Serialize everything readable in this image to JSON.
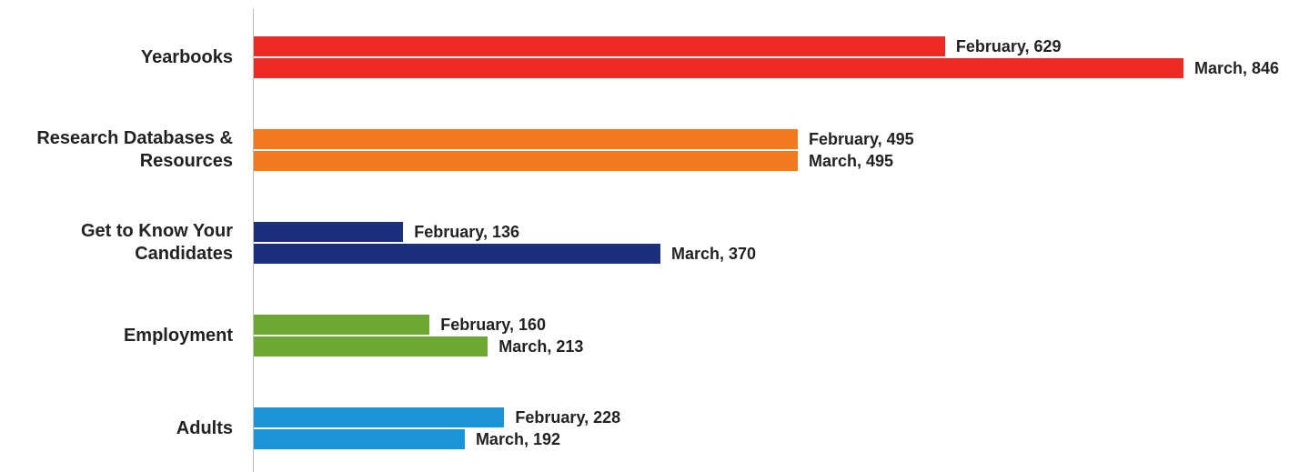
{
  "chart_data": {
    "type": "bar",
    "orientation": "horizontal",
    "categories": [
      "Yearbooks",
      "Research Databases & Resources",
      "Get to Know Your Candidates",
      "Employment",
      "Adults"
    ],
    "colors": [
      "#ee2a24",
      "#f47a20",
      "#1b2f7c",
      "#6aa832",
      "#1a93d8"
    ],
    "series": [
      {
        "values": [
          629,
          495,
          136,
          160,
          228
        ],
        "value_labels": [
          "February, 629",
          "February, 495",
          "February, 136",
          "February, 160",
          "February, 228"
        ]
      },
      {
        "values": [
          846,
          495,
          370,
          213,
          192
        ],
        "value_labels": [
          "March, 846",
          "March, 495",
          "March, 370",
          "March, 213",
          "March, 192"
        ]
      }
    ]
  }
}
